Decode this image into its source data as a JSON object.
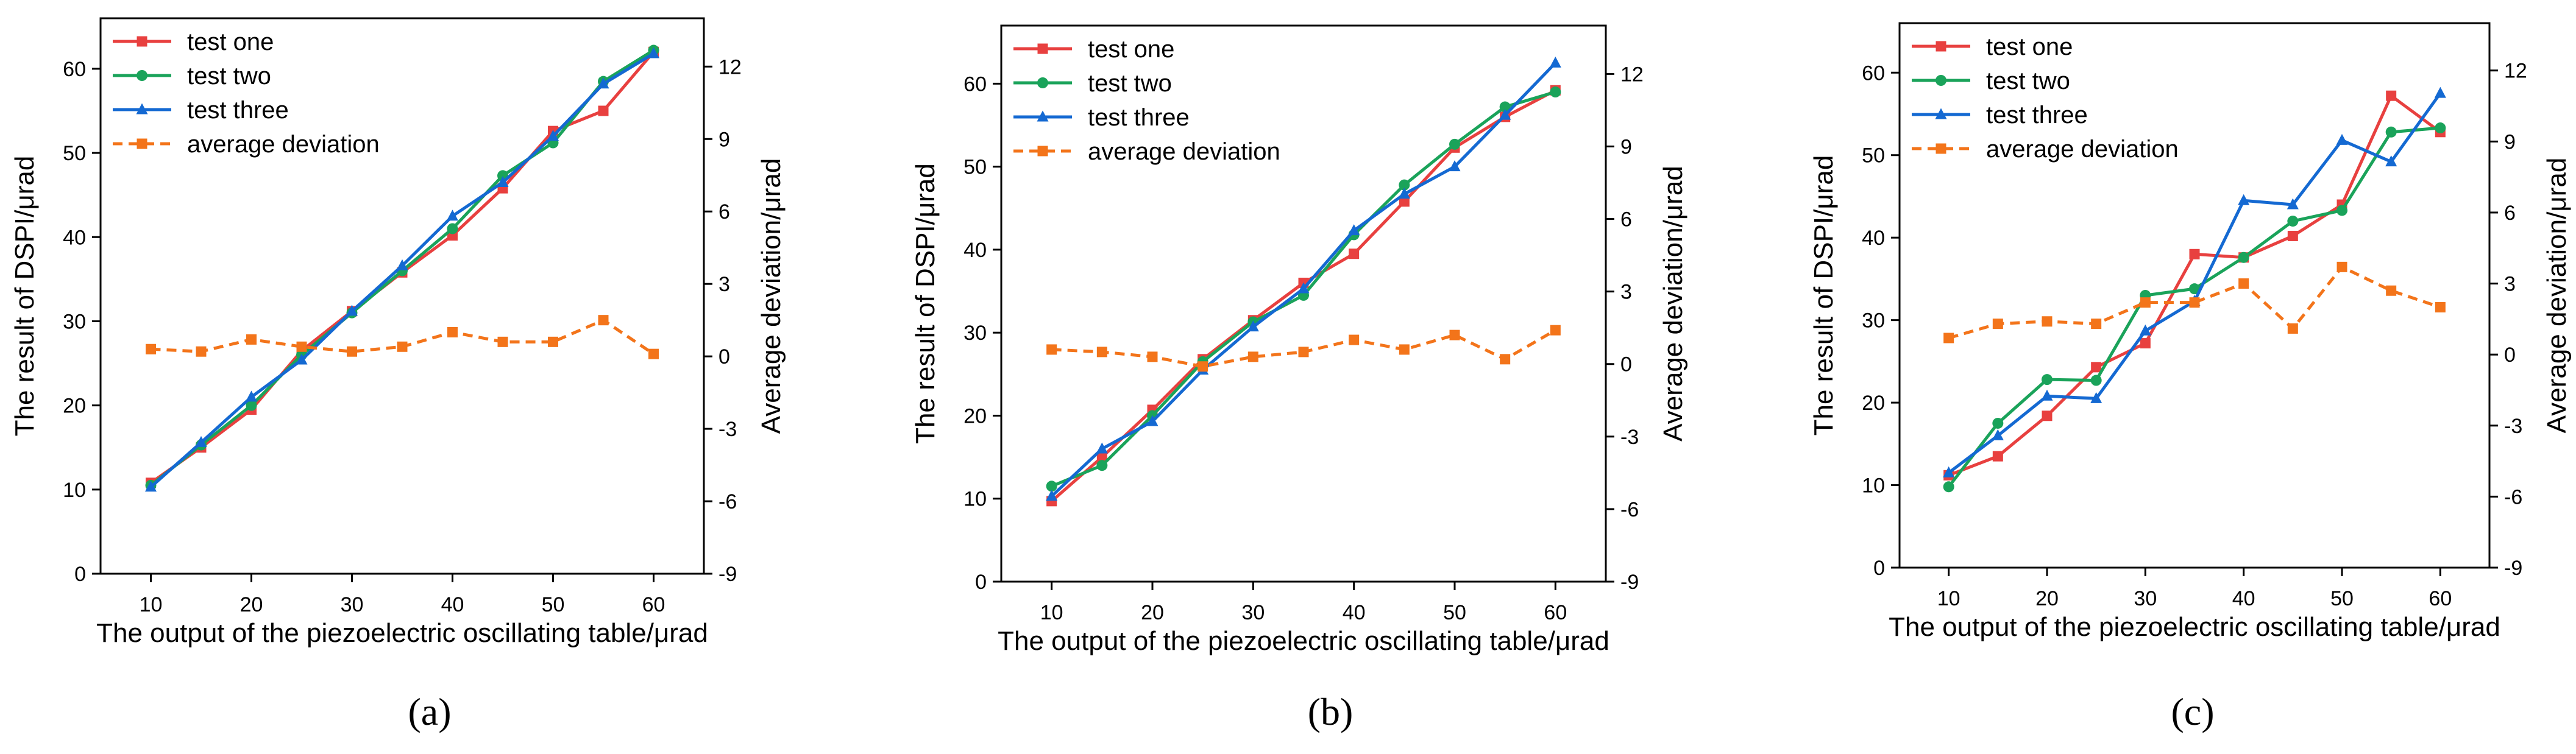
{
  "figure": {
    "panel_labels": [
      "(a)",
      "(b)",
      "(c)"
    ]
  },
  "chart_data": [
    {
      "type": "line",
      "panel": "(a)",
      "xlabel": "The output of the piezoelectric oscillating table/μrad",
      "ylabel": "The result of DSPI/μrad",
      "y2label": "Average deviation/μrad",
      "x": [
        10,
        15,
        20,
        25,
        30,
        35,
        40,
        45,
        50,
        55,
        60
      ],
      "xlim": [
        5,
        65
      ],
      "ylim": [
        0,
        66
      ],
      "y2lim": [
        -9,
        14
      ],
      "xticks": [
        10,
        20,
        30,
        40,
        50,
        60
      ],
      "yticks": [
        0,
        10,
        20,
        30,
        40,
        50,
        60
      ],
      "y2ticks": [
        -9,
        -6,
        -3,
        0,
        3,
        6,
        9,
        12
      ],
      "legend_position": "top-left",
      "series": [
        {
          "name": "test one",
          "axis": "left",
          "color": "#e8403f",
          "marker": "square",
          "dash": false,
          "values": [
            10.8,
            15.0,
            19.5,
            26.5,
            31.2,
            35.8,
            40.2,
            45.8,
            52.6,
            55.0,
            62.0
          ]
        },
        {
          "name": "test two",
          "axis": "left",
          "color": "#1aa35a",
          "marker": "circle",
          "dash": false,
          "values": [
            10.5,
            15.3,
            20.0,
            26.0,
            31.0,
            36.0,
            41.0,
            47.3,
            51.2,
            58.5,
            62.2
          ]
        },
        {
          "name": "test three",
          "axis": "left",
          "color": "#1469d2",
          "marker": "triangle",
          "dash": false,
          "values": [
            10.3,
            15.6,
            21.0,
            25.4,
            31.2,
            36.6,
            42.5,
            46.5,
            52.0,
            58.2,
            61.8
          ]
        },
        {
          "name": "average deviation",
          "axis": "right",
          "color": "#f3741a",
          "marker": "square",
          "dash": true,
          "values": [
            0.3,
            0.2,
            0.7,
            0.4,
            0.2,
            0.4,
            1.0,
            0.6,
            0.6,
            1.5,
            0.1
          ]
        }
      ]
    },
    {
      "type": "line",
      "panel": "(b)",
      "xlabel": "The output of the piezoelectric oscillating table/μrad",
      "ylabel": "The result of DSPI/μrad",
      "y2label": "Average deviation/μrad",
      "x": [
        10,
        15,
        20,
        25,
        30,
        35,
        40,
        45,
        50,
        55,
        60
      ],
      "xlim": [
        5,
        65
      ],
      "ylim": [
        0,
        67
      ],
      "y2lim": [
        -9,
        14
      ],
      "xticks": [
        10,
        20,
        30,
        40,
        50,
        60
      ],
      "yticks": [
        0,
        10,
        20,
        30,
        40,
        50,
        60
      ],
      "y2ticks": [
        -9,
        -6,
        -3,
        0,
        3,
        6,
        9,
        12
      ],
      "legend_position": "top-left",
      "series": [
        {
          "name": "test one",
          "axis": "left",
          "color": "#e8403f",
          "marker": "square",
          "dash": false,
          "values": [
            9.7,
            15.0,
            20.7,
            26.8,
            31.5,
            36.0,
            39.5,
            45.8,
            52.3,
            56.0,
            59.2
          ]
        },
        {
          "name": "test two",
          "axis": "left",
          "color": "#1aa35a",
          "marker": "circle",
          "dash": false,
          "values": [
            11.5,
            14.0,
            20.0,
            26.5,
            31.3,
            34.5,
            41.8,
            47.8,
            52.7,
            57.2,
            59.0
          ]
        },
        {
          "name": "test three",
          "axis": "left",
          "color": "#1469d2",
          "marker": "triangle",
          "dash": false,
          "values": [
            10.3,
            16.0,
            19.3,
            25.5,
            30.7,
            35.3,
            42.3,
            46.7,
            50.0,
            56.2,
            62.5
          ]
        },
        {
          "name": "average deviation",
          "axis": "right",
          "color": "#f3741a",
          "marker": "square",
          "dash": true,
          "values": [
            0.6,
            0.5,
            0.3,
            -0.1,
            0.3,
            0.5,
            1.0,
            0.6,
            1.2,
            0.2,
            1.4
          ]
        }
      ]
    },
    {
      "type": "line",
      "panel": "(c)",
      "xlabel": "The output of the piezoelectric oscillating table/μrad",
      "ylabel": "The result of DSPI/μrad",
      "y2label": "Average deviation/μrad",
      "x": [
        10,
        15,
        20,
        25,
        30,
        35,
        40,
        45,
        50,
        55,
        60
      ],
      "xlim": [
        5,
        65
      ],
      "ylim": [
        0,
        66
      ],
      "y2lim": [
        -9,
        14
      ],
      "xticks": [
        10,
        20,
        30,
        40,
        50,
        60
      ],
      "yticks": [
        0,
        10,
        20,
        30,
        40,
        50,
        60
      ],
      "y2ticks": [
        -9,
        -6,
        -3,
        0,
        3,
        6,
        9,
        12
      ],
      "legend_position": "top-left",
      "series": [
        {
          "name": "test one",
          "axis": "left",
          "color": "#e8403f",
          "marker": "square",
          "dash": false,
          "values": [
            11.2,
            13.5,
            18.4,
            24.3,
            27.2,
            38.0,
            37.6,
            40.2,
            44.0,
            57.2,
            52.8
          ]
        },
        {
          "name": "test two",
          "axis": "left",
          "color": "#1aa35a",
          "marker": "circle",
          "dash": false,
          "values": [
            9.8,
            17.5,
            22.8,
            22.7,
            33.0,
            33.8,
            37.6,
            42.0,
            43.3,
            52.8,
            53.3
          ]
        },
        {
          "name": "test three",
          "axis": "left",
          "color": "#1469d2",
          "marker": "triangle",
          "dash": false,
          "values": [
            11.5,
            16.0,
            20.8,
            20.5,
            28.7,
            32.3,
            44.5,
            44.0,
            51.8,
            49.2,
            57.5
          ]
        },
        {
          "name": "average deviation",
          "axis": "right",
          "color": "#f3741a",
          "marker": "square",
          "dash": true,
          "values": [
            0.7,
            1.3,
            1.4,
            1.3,
            2.2,
            2.2,
            3.0,
            1.1,
            3.7,
            2.7,
            2.0
          ]
        }
      ]
    }
  ]
}
